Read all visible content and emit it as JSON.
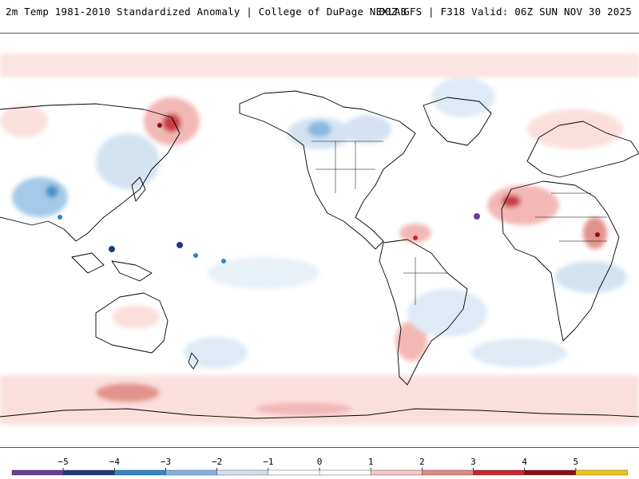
{
  "header": {
    "left_title": "2m Temp 1981-2010 Standardized Anomaly | College of DuPage NEXLAB",
    "right_title": "00Z GFS | F318 Valid: 06Z SUN NOV 30 2025"
  },
  "map": {
    "projection": "global equirectangular, Pacific-centered",
    "field": "2m temperature standardized anomaly"
  },
  "legend": {
    "labels": [
      "−5",
      "−4",
      "−3",
      "−2",
      "−1",
      "0",
      "1",
      "2",
      "3",
      "4",
      "5"
    ],
    "colors": [
      "#6a3d9a",
      "#1f3a7a",
      "#2d86c9",
      "#7fb3de",
      "#cfe0f1",
      "#ffffff",
      "#ffffff",
      "#f6c7c3",
      "#e08880",
      "#c6272f",
      "#8a0d12",
      "#f5c518"
    ]
  }
}
